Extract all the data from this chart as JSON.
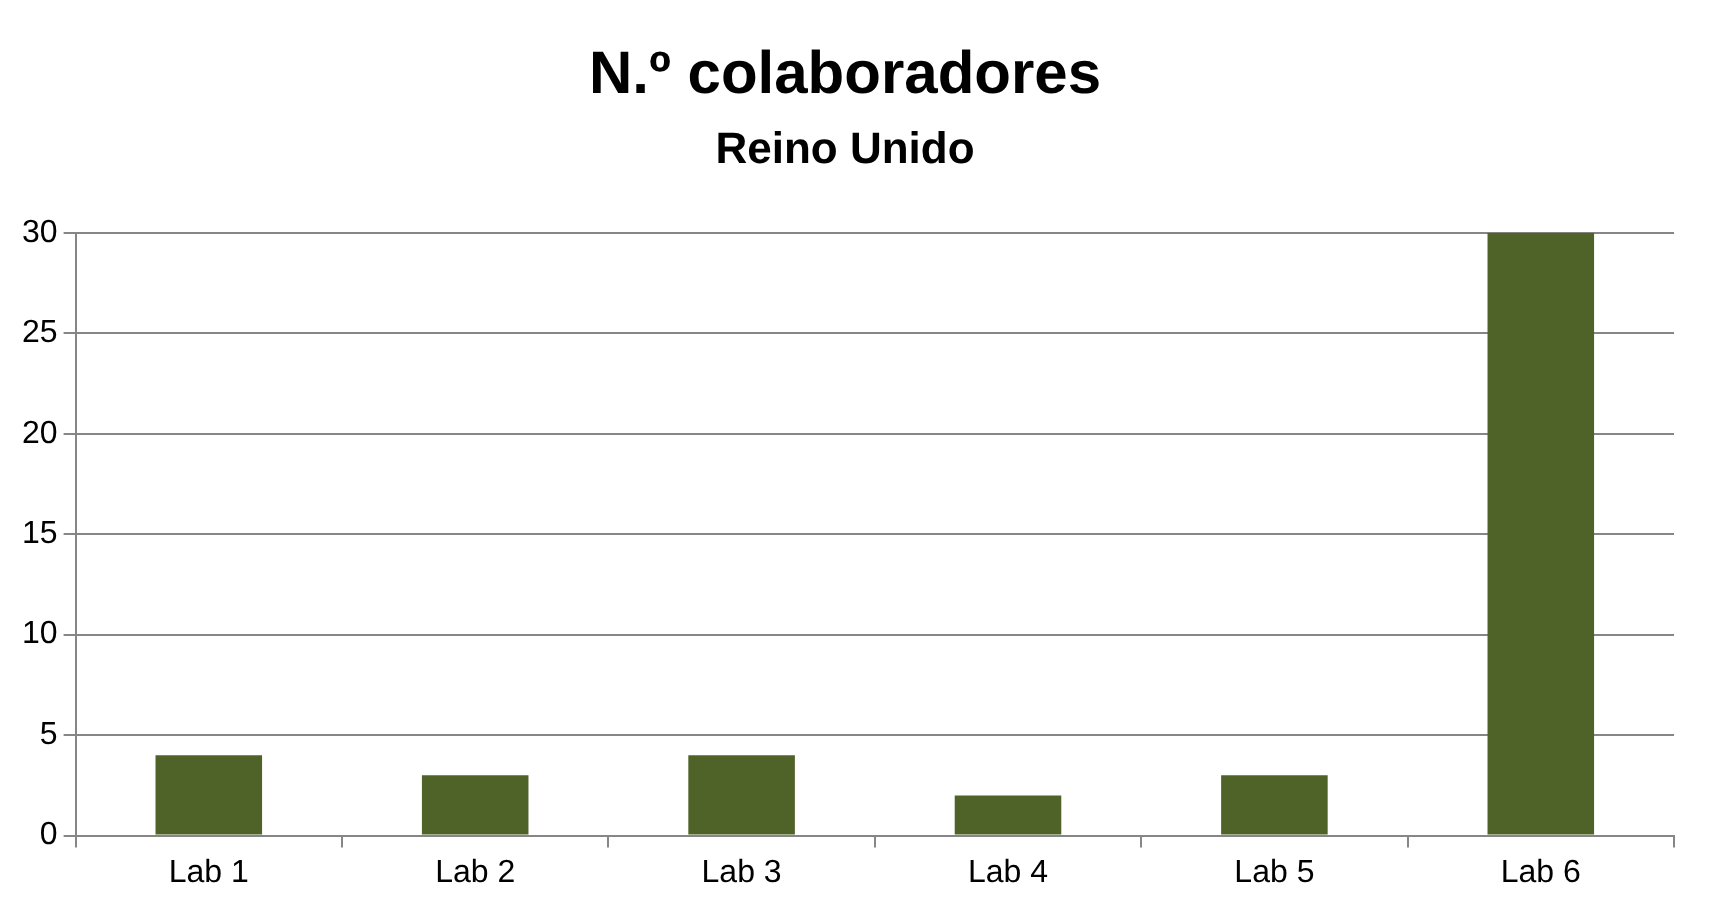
{
  "chart_data": {
    "type": "bar",
    "title": "N.º colaboradores",
    "subtitle": "Reino Unido",
    "categories": [
      "Lab 1",
      "Lab 2",
      "Lab 3",
      "Lab 4",
      "Lab 5",
      "Lab 6"
    ],
    "values": [
      4,
      3,
      4,
      2,
      3,
      30
    ],
    "color": "#4f6228",
    "ylim": [
      0,
      30
    ],
    "yticks": [
      0,
      5,
      10,
      15,
      20,
      25,
      30
    ],
    "grid": "y",
    "legend": false
  }
}
